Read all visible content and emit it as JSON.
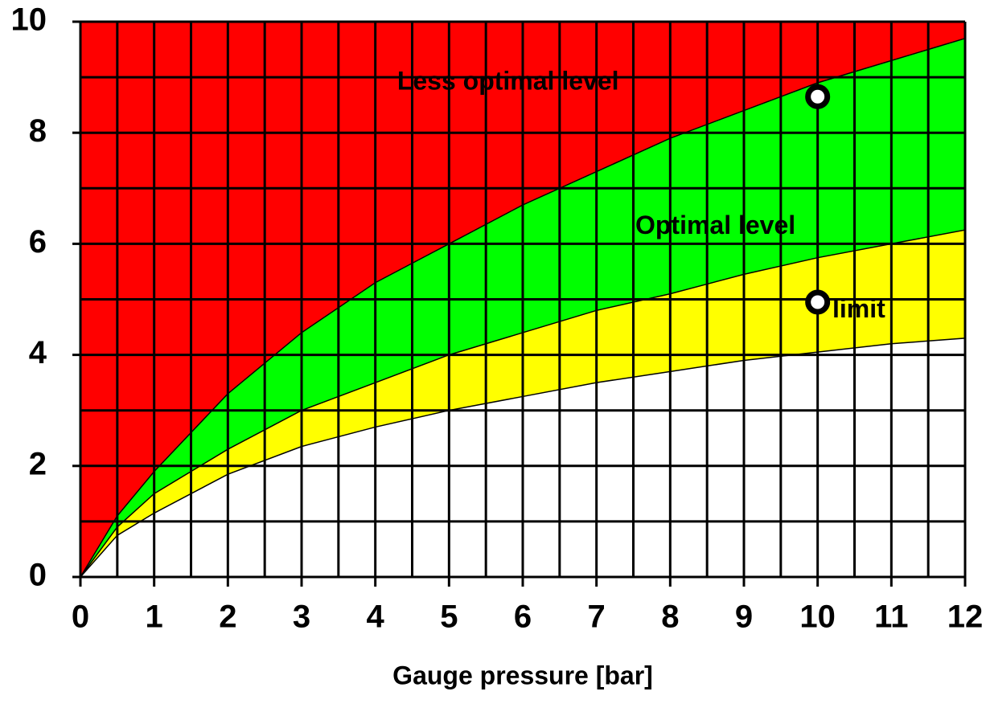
{
  "chart_data": {
    "type": "area",
    "xlabel": "Gauge pressure [bar]",
    "background": "#ff0000",
    "x": [
      0,
      0.5,
      1,
      2,
      3,
      4,
      5,
      6,
      7,
      8,
      9,
      10,
      11,
      12
    ],
    "series": [
      {
        "color": "#00ff00",
        "values": [
          0,
          1.1,
          1.9,
          3.3,
          4.4,
          5.3,
          6.0,
          6.7,
          7.3,
          7.9,
          8.4,
          8.9,
          9.3,
          9.7
        ]
      },
      {
        "color": "#ffff00",
        "values": [
          0,
          0.9,
          1.5,
          2.3,
          3.0,
          3.5,
          4.0,
          4.4,
          4.8,
          5.1,
          5.45,
          5.75,
          6.0,
          6.25
        ]
      },
      {
        "color": "#ffffff",
        "values": [
          0,
          0.75,
          1.15,
          1.85,
          2.35,
          2.7,
          3.0,
          3.25,
          3.5,
          3.7,
          3.9,
          4.05,
          4.2,
          4.3
        ]
      }
    ],
    "points": {
      "x": [
        10,
        10
      ],
      "y": [
        8.65,
        4.95
      ]
    },
    "annotations": [
      "Less optimal level",
      "Optimal level",
      "limit"
    ],
    "xlim": [
      0,
      12
    ],
    "ylim": [
      0,
      10
    ],
    "xticks": [
      0,
      1,
      2,
      3,
      4,
      5,
      6,
      7,
      8,
      9,
      10,
      11,
      12
    ],
    "yticks": [
      0,
      2,
      4,
      6,
      8,
      10
    ],
    "xgrid": [
      0,
      0.5,
      1,
      1.5,
      2,
      2.5,
      3,
      3.5,
      4,
      4.5,
      5,
      5.5,
      6,
      6.5,
      7,
      7.5,
      8,
      8.5,
      9,
      9.5,
      10,
      10.5,
      11,
      11.5,
      12
    ],
    "ygrid": [
      0,
      1,
      2,
      3,
      4,
      5,
      6,
      7,
      8,
      9,
      10
    ]
  }
}
